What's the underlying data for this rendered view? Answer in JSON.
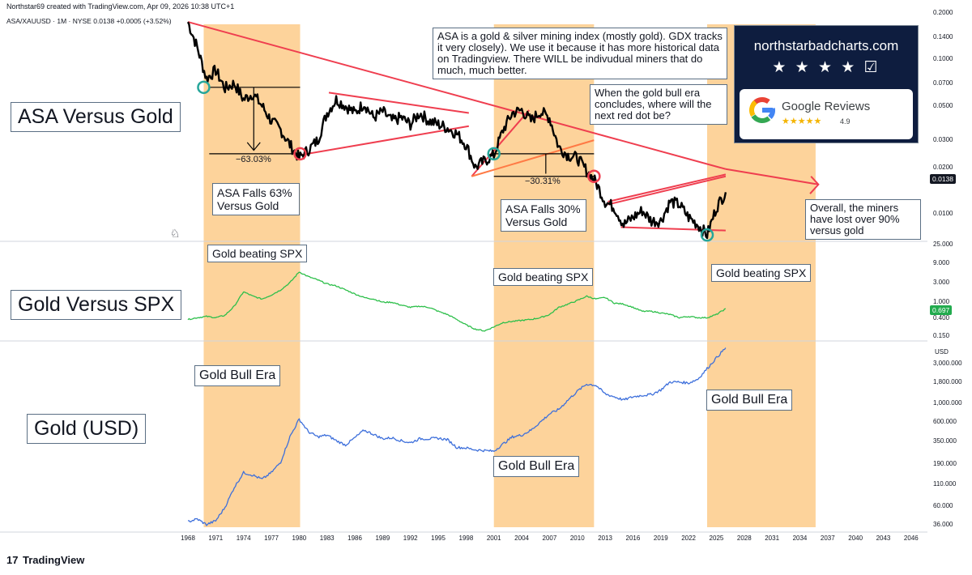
{
  "header": {
    "created_by": "Northstar69 created with TradingView.com, Apr 09, 2026 10:38 UTC+1",
    "symbol_line": "ASA/XAUUSD · 1M · NYSE  0.0138  +0.0005 (+3.52%)"
  },
  "badge": {
    "site": "northstarbadcharts.com",
    "stars": "★ ★ ★ ★ ☑",
    "reviews_label": "Google Reviews",
    "review_stars": "★★★★★",
    "rating": "4.9"
  },
  "labels": {
    "panel1": "ASA Versus Gold",
    "panel2": "Gold Versus SPX",
    "panel3": "Gold (USD)",
    "note_asa": "ASA is a gold & silver mining index (mostly gold). GDX tracks it very closely). We use it because it has more historical data on Tradingview. There WILL be indivudual miners that do much, much better.",
    "note_next": "When the gold bull era concludes, where will the next red dot be?",
    "note_overall": "Overall, the miners have lost over 90% versus gold",
    "fall63": "ASA Falls 63% Versus Gold",
    "fall30": "ASA Falls 30% Versus Gold",
    "pct63": "−63.03%",
    "pct30": "−30.31%",
    "beating": "Gold beating SPX",
    "bull_era": "Gold Bull Era"
  },
  "colors": {
    "era_fill": "#fdd39b",
    "asa_line": "#000000",
    "trend_red": "#ef3e4f",
    "gold_spx_line": "#2dbf4a",
    "gold_usd_line": "#3d6fdb",
    "dot_green": "#26a69a",
    "dot_red": "#ef3e4f",
    "tag_asa": "#131722",
    "tag_spx": "#22ab4e"
  },
  "chart_data": {
    "type": "line",
    "x_axis": [
      "1968",
      "1971",
      "1974",
      "1977",
      "1980",
      "1983",
      "1986",
      "1989",
      "1992",
      "1995",
      "1998",
      "2001",
      "2004",
      "2007",
      "2010",
      "2013",
      "2016",
      "2019",
      "2022",
      "2025",
      "2028",
      "2031",
      "2034",
      "2037",
      "2040",
      "2043",
      "2046"
    ],
    "gold_bull_eras": [
      [
        1969.7,
        1980.1
      ],
      [
        2001.0,
        2011.8
      ],
      [
        2024.0,
        2035.7
      ]
    ],
    "panels": [
      {
        "name": "ASA/XAUUSD",
        "scale": "log",
        "y_ticks": [
          "0.2000",
          "0.1400",
          "0.1000",
          "0.0700",
          "0.0500",
          "0.0300",
          "0.0200",
          "0.0100"
        ],
        "last_value": "0.0138",
        "series": {
          "x": [
            1968,
            1969,
            1970,
            1971,
            1972,
            1973,
            1974,
            1975,
            1976,
            1977,
            1978,
            1979,
            1980,
            1981,
            1982,
            1983,
            1984,
            1985,
            1986,
            1987,
            1988,
            1989,
            1990,
            1991,
            1992,
            1993,
            1994,
            1995,
            1996,
            1997,
            1998,
            1999,
            2000,
            2001,
            2002,
            2003,
            2004,
            2005,
            2006,
            2007,
            2008,
            2009,
            2010,
            2011,
            2012,
            2013,
            2014,
            2015,
            2016,
            2017,
            2018,
            2019,
            2020,
            2021,
            2022,
            2023,
            2024,
            2025,
            2026
          ],
          "y": [
            0.175,
            0.12,
            0.075,
            0.085,
            0.065,
            0.07,
            0.055,
            0.06,
            0.05,
            0.04,
            0.035,
            0.028,
            0.023,
            0.026,
            0.03,
            0.045,
            0.055,
            0.05,
            0.045,
            0.052,
            0.042,
            0.046,
            0.04,
            0.042,
            0.038,
            0.045,
            0.04,
            0.038,
            0.036,
            0.033,
            0.028,
            0.02,
            0.022,
            0.024,
            0.035,
            0.045,
            0.047,
            0.04,
            0.046,
            0.042,
            0.027,
            0.024,
            0.023,
            0.019,
            0.016,
            0.012,
            0.011,
            0.0085,
            0.0095,
            0.0105,
            0.009,
            0.009,
            0.012,
            0.0115,
            0.0095,
            0.0085,
            0.0073,
            0.011,
            0.0138
          ]
        }
      },
      {
        "name": "Gold/SPX",
        "scale": "log",
        "y_ticks": [
          "25.000",
          "9.000",
          "3.000",
          "1.000",
          "0.400",
          "0.150"
        ],
        "last_value": "0.697",
        "series": {
          "x": [
            1968,
            1969,
            1970,
            1971,
            1972,
            1973,
            1974,
            1975,
            1976,
            1977,
            1978,
            1979,
            1980,
            1981,
            1982,
            1983,
            1984,
            1985,
            1986,
            1987,
            1988,
            1989,
            1990,
            1991,
            1992,
            1993,
            1994,
            1995,
            1996,
            1997,
            1998,
            1999,
            2000,
            2001,
            2002,
            2003,
            2004,
            2005,
            2006,
            2007,
            2008,
            2009,
            2010,
            2011,
            2012,
            2013,
            2014,
            2015,
            2016,
            2017,
            2018,
            2019,
            2020,
            2021,
            2022,
            2023,
            2024,
            2025,
            2026
          ],
          "y": [
            0.38,
            0.42,
            0.45,
            0.42,
            0.48,
            0.8,
            1.8,
            1.4,
            1.2,
            1.5,
            2.0,
            3.0,
            5.5,
            4.2,
            3.5,
            2.8,
            2.5,
            2.0,
            1.6,
            1.3,
            1.2,
            1.0,
            1.0,
            0.85,
            0.75,
            0.8,
            0.75,
            0.6,
            0.5,
            0.38,
            0.28,
            0.22,
            0.2,
            0.25,
            0.32,
            0.34,
            0.36,
            0.38,
            0.42,
            0.5,
            0.75,
            0.9,
            1.1,
            1.4,
            1.2,
            1.3,
            0.95,
            0.9,
            0.75,
            0.6,
            0.6,
            0.55,
            0.5,
            0.42,
            0.45,
            0.42,
            0.42,
            0.5,
            0.697
          ]
        }
      },
      {
        "name": "Gold (USD)",
        "scale": "log",
        "y_label": "USD",
        "y_ticks": [
          "3,000.000",
          "1,800.000",
          "1,000.000",
          "600.000",
          "350.000",
          "190.000",
          "110.000",
          "60.000",
          "36.000"
        ],
        "series": {
          "x": [
            1968,
            1969,
            1970,
            1971,
            1972,
            1973,
            1974,
            1975,
            1976,
            1977,
            1978,
            1979,
            1980,
            1981,
            1982,
            1983,
            1984,
            1985,
            1986,
            1987,
            1988,
            1989,
            1990,
            1991,
            1992,
            1993,
            1994,
            1995,
            1996,
            1997,
            1998,
            1999,
            2000,
            2001,
            2002,
            2003,
            2004,
            2005,
            2006,
            2007,
            2008,
            2009,
            2010,
            2011,
            2012,
            2013,
            2014,
            2015,
            2016,
            2017,
            2018,
            2019,
            2020,
            2021,
            2022,
            2023,
            2024,
            2025,
            2026
          ],
          "y": [
            39,
            42,
            36,
            40,
            58,
            100,
            150,
            140,
            125,
            150,
            200,
            400,
            650,
            460,
            400,
            420,
            360,
            320,
            390,
            480,
            430,
            380,
            390,
            360,
            340,
            380,
            380,
            385,
            370,
            300,
            295,
            280,
            275,
            270,
            330,
            400,
            420,
            480,
            600,
            750,
            850,
            1100,
            1400,
            1700,
            1650,
            1300,
            1200,
            1100,
            1200,
            1250,
            1280,
            1450,
            1800,
            1800,
            1750,
            1950,
            2600,
            3500,
            4600
          ]
        }
      }
    ]
  }
}
